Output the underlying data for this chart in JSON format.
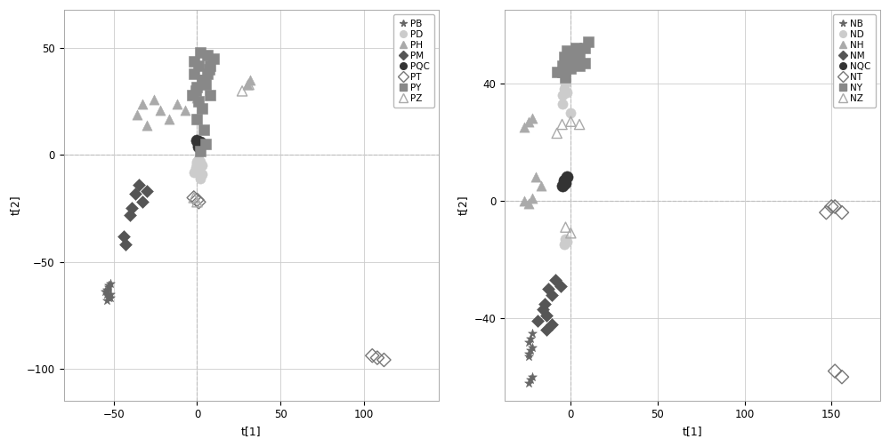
{
  "plot1": {
    "xlabel": "t[1]",
    "ylabel": "t[2]",
    "xlim": [
      -80,
      145
    ],
    "ylim": [
      -115,
      68
    ],
    "xticks": [
      -50,
      0,
      50,
      100
    ],
    "yticks": [
      -100,
      -50,
      0,
      50
    ],
    "series": {
      "PB": {
        "color": "#666666",
        "marker": "*",
        "filled": true,
        "size": 55,
        "points": [
          [
            -52,
            -60
          ],
          [
            -53,
            -62
          ],
          [
            -54,
            -63
          ],
          [
            -55,
            -64
          ],
          [
            -54,
            -65
          ],
          [
            -53,
            -66
          ],
          [
            -52,
            -67
          ],
          [
            -53,
            -61
          ],
          [
            -54,
            -64
          ],
          [
            -52,
            -65
          ],
          [
            -53,
            -67
          ],
          [
            -54,
            -68
          ]
        ]
      },
      "PD": {
        "color": "#cccccc",
        "marker": "o",
        "filled": true,
        "size": 65,
        "points": [
          [
            -2,
            -8
          ],
          [
            0,
            -5
          ],
          [
            2,
            -3
          ],
          [
            1,
            -2
          ],
          [
            0,
            -4
          ],
          [
            -1,
            -6
          ],
          [
            3,
            -9
          ],
          [
            2,
            -11
          ],
          [
            0,
            -3
          ],
          [
            3,
            -5
          ],
          [
            -1,
            -7
          ]
        ]
      },
      "PH": {
        "color": "#aaaaaa",
        "marker": "^",
        "filled": true,
        "size": 65,
        "points": [
          [
            -33,
            24
          ],
          [
            -36,
            19
          ],
          [
            -30,
            14
          ],
          [
            -22,
            21
          ],
          [
            -26,
            26
          ],
          [
            -17,
            17
          ],
          [
            -12,
            24
          ],
          [
            -7,
            21
          ],
          [
            0,
            27
          ],
          [
            30,
            33
          ],
          [
            32,
            35
          ]
        ]
      },
      "PM": {
        "color": "#555555",
        "marker": "D",
        "filled": true,
        "size": 50,
        "points": [
          [
            -30,
            -17
          ],
          [
            -35,
            -14
          ],
          [
            -33,
            -22
          ],
          [
            -37,
            -18
          ],
          [
            -39,
            -25
          ],
          [
            -40,
            -28
          ],
          [
            -44,
            -38
          ],
          [
            -43,
            -42
          ]
        ]
      },
      "PQC": {
        "color": "#333333",
        "marker": "o",
        "filled": true,
        "size": 90,
        "points": [
          [
            1,
            5
          ],
          [
            2,
            6
          ],
          [
            0,
            7
          ],
          [
            1,
            4
          ]
        ]
      },
      "PT": {
        "color": "#777777",
        "marker": "D",
        "filled": false,
        "size": 60,
        "points": [
          [
            108,
            -95
          ],
          [
            112,
            -96
          ],
          [
            105,
            -94
          ],
          [
            -2,
            -20
          ],
          [
            0,
            -21
          ],
          [
            1,
            -22
          ]
        ]
      },
      "PY": {
        "color": "#888888",
        "marker": "s",
        "filled": true,
        "size": 65,
        "points": [
          [
            -3,
            28
          ],
          [
            0,
            32
          ],
          [
            3,
            35
          ],
          [
            6,
            38
          ],
          [
            1,
            25
          ],
          [
            8,
            42
          ],
          [
            10,
            45
          ],
          [
            -1,
            30
          ],
          [
            4,
            35
          ],
          [
            7,
            40
          ],
          [
            -2,
            38
          ],
          [
            1,
            42
          ],
          [
            5,
            33
          ],
          [
            8,
            28
          ],
          [
            3,
            22
          ],
          [
            0,
            17
          ],
          [
            4,
            12
          ],
          [
            5,
            5
          ],
          [
            2,
            2
          ],
          [
            -2,
            44
          ],
          [
            2,
            48
          ],
          [
            6,
            47
          ]
        ]
      },
      "PZ": {
        "color": "#aaaaaa",
        "marker": "^",
        "filled": false,
        "size": 65,
        "points": [
          [
            -2,
            -20
          ],
          [
            0,
            -22
          ],
          [
            27,
            30
          ],
          [
            31,
            33
          ]
        ]
      }
    },
    "legend_order": [
      "PB",
      "PD",
      "PH",
      "PM",
      "PQC",
      "PT",
      "PY",
      "PZ"
    ]
  },
  "plot2": {
    "xlabel": "t[1]",
    "ylabel": "t[2]",
    "xlim": [
      -38,
      178
    ],
    "ylim": [
      -68,
      65
    ],
    "xticks": [
      0,
      50,
      100,
      150
    ],
    "yticks": [
      -40,
      0,
      40
    ],
    "series": {
      "NB": {
        "color": "#666666",
        "marker": "*",
        "filled": true,
        "size": 55,
        "points": [
          [
            -22,
            -45
          ],
          [
            -23,
            -47
          ],
          [
            -24,
            -48
          ],
          [
            -22,
            -50
          ],
          [
            -23,
            -51
          ],
          [
            -24,
            -52
          ],
          [
            -24,
            -53
          ],
          [
            -22,
            -60
          ],
          [
            -23,
            -61
          ],
          [
            -24,
            -62
          ]
        ]
      },
      "ND": {
        "color": "#cccccc",
        "marker": "o",
        "filled": true,
        "size": 65,
        "points": [
          [
            -5,
            36
          ],
          [
            -4,
            38
          ],
          [
            -3,
            40
          ],
          [
            -2,
            37
          ],
          [
            -5,
            33
          ],
          [
            0,
            30
          ],
          [
            -3,
            -13
          ],
          [
            -2,
            -14
          ],
          [
            -4,
            -15
          ]
        ]
      },
      "NH": {
        "color": "#aaaaaa",
        "marker": "^",
        "filled": true,
        "size": 65,
        "points": [
          [
            -22,
            28
          ],
          [
            -24,
            27
          ],
          [
            -27,
            25
          ],
          [
            -17,
            5
          ],
          [
            -20,
            8
          ],
          [
            -22,
            1
          ],
          [
            -27,
            0
          ],
          [
            -24,
            -1
          ]
        ]
      },
      "NM": {
        "color": "#555555",
        "marker": "D",
        "filled": true,
        "size": 50,
        "points": [
          [
            -11,
            -32
          ],
          [
            -13,
            -30
          ],
          [
            -15,
            -35
          ],
          [
            -16,
            -37
          ],
          [
            -14,
            -39
          ],
          [
            -9,
            -27
          ],
          [
            -6,
            -29
          ],
          [
            -19,
            -41
          ],
          [
            -11,
            -42
          ],
          [
            -14,
            -44
          ]
        ]
      },
      "NQC": {
        "color": "#333333",
        "marker": "o",
        "filled": true,
        "size": 90,
        "points": [
          [
            -5,
            5
          ],
          [
            -4,
            7
          ],
          [
            -3,
            6
          ],
          [
            -2,
            8
          ]
        ]
      },
      "NT": {
        "color": "#777777",
        "marker": "D",
        "filled": false,
        "size": 60,
        "points": [
          [
            152,
            -2
          ],
          [
            156,
            -4
          ],
          [
            150,
            -2
          ],
          [
            147,
            -4
          ],
          [
            152,
            -58
          ],
          [
            156,
            -60
          ]
        ]
      },
      "NY": {
        "color": "#888888",
        "marker": "s",
        "filled": true,
        "size": 65,
        "points": [
          [
            -5,
            44
          ],
          [
            -3,
            47
          ],
          [
            0,
            50
          ],
          [
            3,
            52
          ],
          [
            5,
            50
          ],
          [
            8,
            52
          ],
          [
            10,
            54
          ],
          [
            -8,
            44
          ],
          [
            -3,
            42
          ],
          [
            0,
            45
          ],
          [
            5,
            46
          ],
          [
            -5,
            46
          ],
          [
            8,
            47
          ],
          [
            -4,
            49
          ],
          [
            3,
            49
          ],
          [
            -2,
            51
          ],
          [
            2,
            50
          ],
          [
            -1,
            48
          ],
          [
            4,
            48
          ],
          [
            -3,
            46
          ]
        ]
      },
      "NZ": {
        "color": "#aaaaaa",
        "marker": "^",
        "filled": false,
        "size": 65,
        "points": [
          [
            -8,
            23
          ],
          [
            -5,
            26
          ],
          [
            0,
            27
          ],
          [
            5,
            26
          ],
          [
            -3,
            -9
          ],
          [
            0,
            -11
          ]
        ]
      }
    },
    "legend_order": [
      "NB",
      "ND",
      "NH",
      "NM",
      "NQC",
      "NT",
      "NY",
      "NZ"
    ]
  }
}
